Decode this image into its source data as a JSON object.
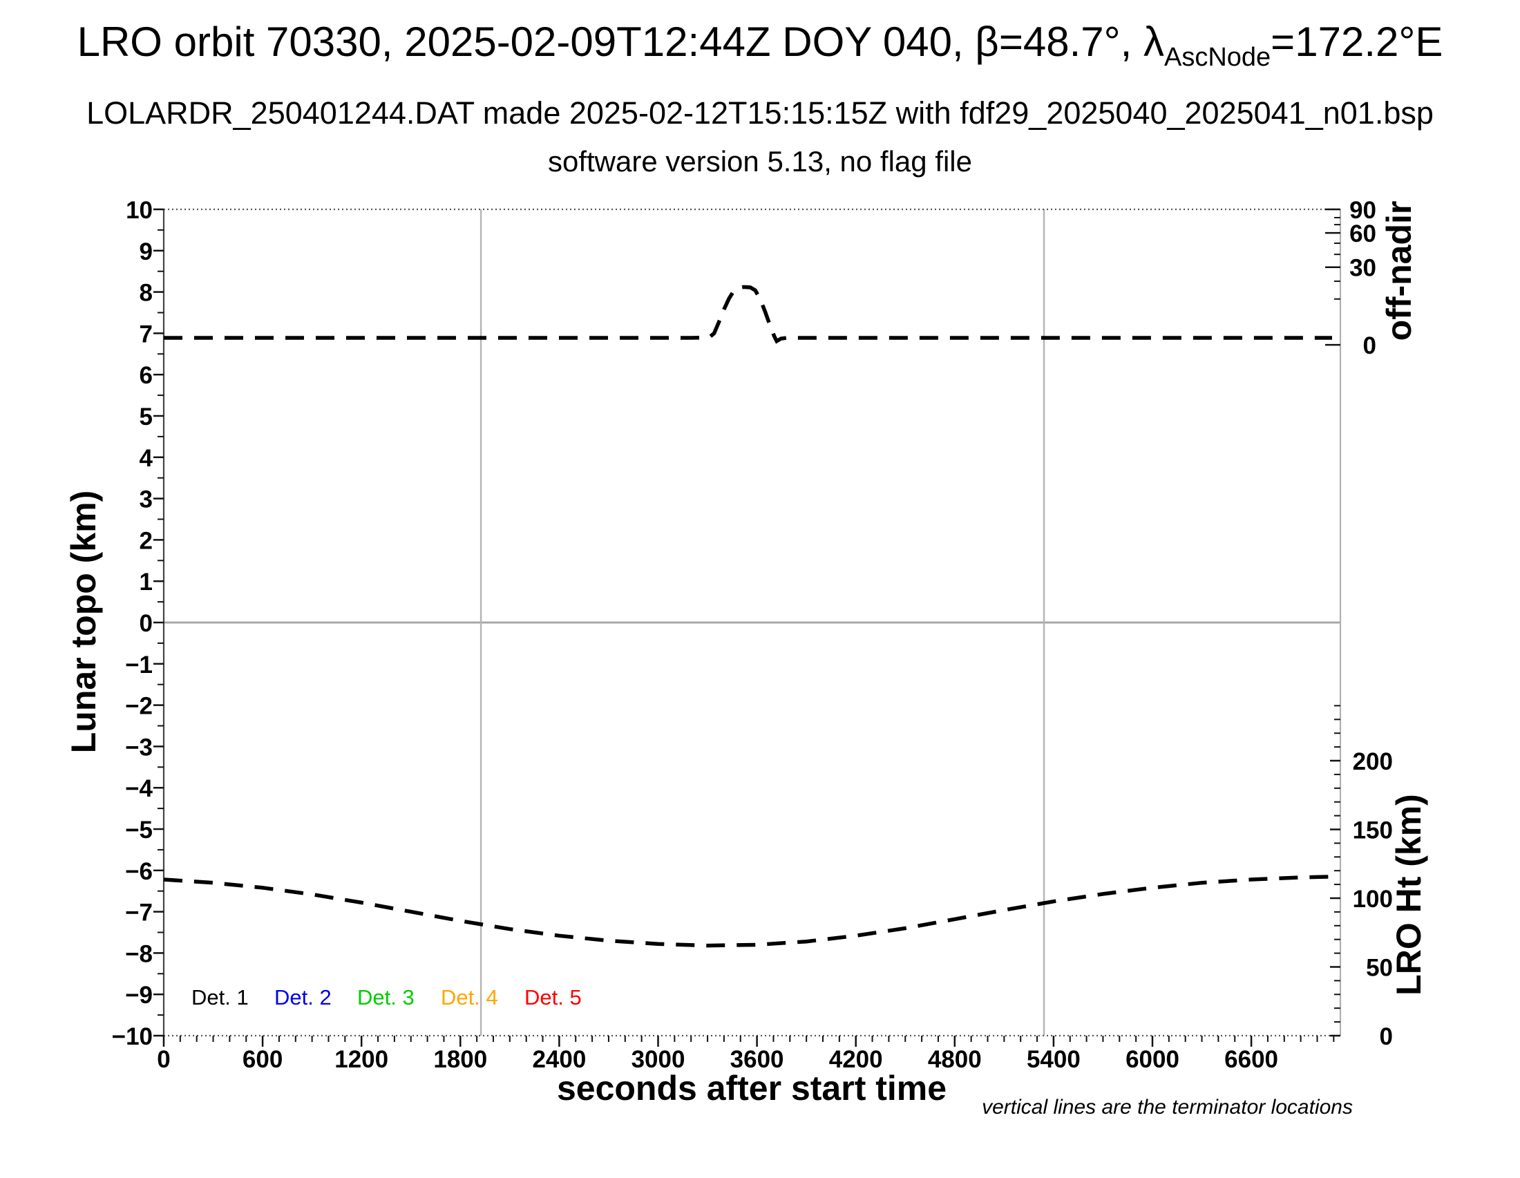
{
  "title": {
    "pre": "LRO orbit 70330, 2025-02-09T12:44Z DOY 040, β=48.7°, λ",
    "sub": "AscNode",
    "post": "=172.2°E"
  },
  "subtitle1": "LOLARDR_250401244.DAT made 2025-02-12T15:15:15Z with fdf29_2025040_2025041_n01.bsp",
  "subtitle2": "software version 5.13, no flag file",
  "footnote": "vertical lines are the terminator locations",
  "chart_data": {
    "type": "line",
    "title": "LRO orbit 70330, 2025-02-09T12:44Z DOY 040, β=48.7°, λAscNode=172.2°E",
    "xlabel": "seconds after start time",
    "x_domain_s": [
      0,
      7141
    ],
    "x_major_ticks_s": [
      0,
      600,
      1200,
      1800,
      2400,
      3000,
      3600,
      4200,
      4800,
      5400,
      6000,
      6600
    ],
    "x_minor_step_s": 100,
    "grid": "off",
    "left_axis": {
      "label": "Lunar topo (km)",
      "range_km": [
        -10,
        10
      ],
      "major_step_km": 1,
      "minor_step_km": 0.5
    },
    "offnadir_axis": {
      "label": "off-nadir",
      "major_ticks": [
        {
          "deg": 90,
          "y_km": 10.0
        },
        {
          "deg": 60,
          "y_km": 9.43
        },
        {
          "deg": 30,
          "y_km": 8.6
        },
        {
          "deg": 0,
          "y_km": 6.72
        }
      ],
      "minor_ticks_y_km": [
        9.8,
        9.63,
        9.18,
        8.91,
        8.26,
        7.83
      ]
    },
    "ht_axis": {
      "label": "LRO Ht (km)",
      "major_ticks_km": [
        200,
        150,
        100,
        50,
        0
      ],
      "minor_step_km": 10,
      "minor_max_km": 240,
      "range_km_at_left_range": [
        0,
        240.4
      ]
    },
    "terminator_lines_s": [
      1925,
      5342
    ],
    "series": [
      {
        "name": "off-nadir angle (Det. 1-5 overlaid)",
        "color": "#000000",
        "style": "dashed",
        "points_s_leftkm": [
          [
            0,
            6.89
          ],
          [
            400,
            6.89
          ],
          [
            800,
            6.89
          ],
          [
            1200,
            6.89
          ],
          [
            1600,
            6.89
          ],
          [
            2000,
            6.89
          ],
          [
            2400,
            6.89
          ],
          [
            2800,
            6.89
          ],
          [
            3200,
            6.89
          ],
          [
            3310,
            6.9
          ],
          [
            3340,
            7.0
          ],
          [
            3370,
            7.28
          ],
          [
            3400,
            7.58
          ],
          [
            3430,
            7.84
          ],
          [
            3460,
            8.03
          ],
          [
            3490,
            8.1
          ],
          [
            3520,
            8.12
          ],
          [
            3560,
            8.11
          ],
          [
            3590,
            8.04
          ],
          [
            3620,
            7.82
          ],
          [
            3650,
            7.52
          ],
          [
            3680,
            7.18
          ],
          [
            3705,
            6.93
          ],
          [
            3720,
            6.81
          ],
          [
            3745,
            6.87
          ],
          [
            3780,
            6.89
          ],
          [
            4200,
            6.89
          ],
          [
            4800,
            6.89
          ],
          [
            5400,
            6.89
          ],
          [
            6000,
            6.89
          ],
          [
            6600,
            6.89
          ],
          [
            7090,
            6.89
          ]
        ],
        "approx_offnadir_deg": {
          "baseline": 2.5,
          "peak": 25,
          "slew_start_s": 3330,
          "slew_end_s": 3735
        }
      },
      {
        "name": "LRO height",
        "color": "#000000",
        "style": "dashed",
        "points_s_leftkm": [
          [
            0,
            -6.22
          ],
          [
            300,
            -6.3
          ],
          [
            600,
            -6.42
          ],
          [
            900,
            -6.58
          ],
          [
            1200,
            -6.78
          ],
          [
            1500,
            -7.0
          ],
          [
            1800,
            -7.22
          ],
          [
            2100,
            -7.42
          ],
          [
            2400,
            -7.58
          ],
          [
            2700,
            -7.7
          ],
          [
            3000,
            -7.78
          ],
          [
            3300,
            -7.82
          ],
          [
            3600,
            -7.8
          ],
          [
            3900,
            -7.72
          ],
          [
            4200,
            -7.58
          ],
          [
            4500,
            -7.4
          ],
          [
            4800,
            -7.18
          ],
          [
            5100,
            -6.96
          ],
          [
            5400,
            -6.75
          ],
          [
            5700,
            -6.57
          ],
          [
            6000,
            -6.42
          ],
          [
            6300,
            -6.3
          ],
          [
            6600,
            -6.22
          ],
          [
            6900,
            -6.17
          ],
          [
            7090,
            -6.15
          ]
        ],
        "approx_ht_km": [
          113.6,
          111.2,
          107.6,
          102.8,
          96.8,
          90.2,
          83.6,
          77.5,
          72.7,
          69.1,
          66.7,
          65.5,
          66.1,
          68.5,
          72.7,
          78.1,
          84.8,
          91.4,
          97.7,
          103.1,
          107.6,
          111.2,
          113.6,
          115.1,
          115.7
        ]
      }
    ],
    "legend": [
      {
        "label": "Det. 1",
        "color": "#000000"
      },
      {
        "label": "Det. 2",
        "color": "#0000ee"
      },
      {
        "label": "Det. 3",
        "color": "#00cc00"
      },
      {
        "label": "Det. 4",
        "color": "#ffa500"
      },
      {
        "label": "Det. 5",
        "color": "#ff0000"
      }
    ]
  }
}
